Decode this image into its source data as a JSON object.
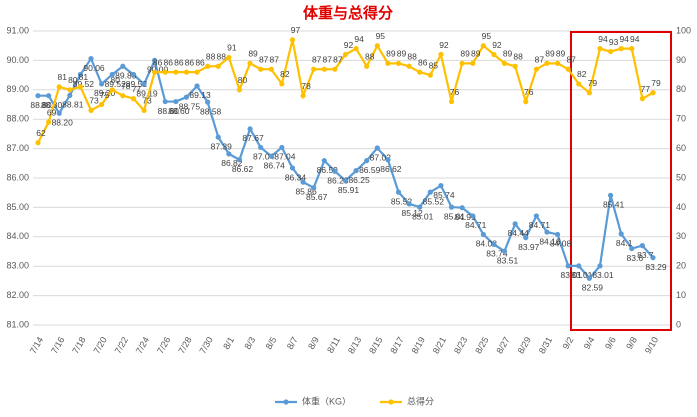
{
  "chart_data": {
    "type": "line",
    "title": "体重与总得分",
    "categories": [
      "7/14",
      null,
      "7/16",
      null,
      "7/18",
      null,
      "7/20",
      null,
      "7/22",
      null,
      "7/24",
      null,
      "7/26",
      null,
      "7/28",
      null,
      "7/30",
      null,
      "8/1",
      null,
      "8/3",
      null,
      "8/5",
      null,
      "8/7",
      null,
      "8/9",
      null,
      "8/11",
      null,
      "8/13",
      null,
      "8/15",
      null,
      "8/17",
      null,
      "8/19",
      null,
      "8/21",
      null,
      "8/23",
      null,
      "8/25",
      null,
      "8/27",
      null,
      "8/29",
      null,
      "8/31",
      null,
      "9/2",
      null,
      "9/4",
      null,
      "9/6",
      null,
      "9/8",
      null,
      "9/10"
    ],
    "series": [
      {
        "name": "体重（KG）",
        "color": "#5b9bd5",
        "axis": "y",
        "values": [
          88.8,
          88.8,
          88.2,
          88.81,
          89.52,
          90.06,
          89.2,
          89.52,
          89.8,
          89.52,
          89.19,
          90.0,
          88.6,
          88.6,
          88.75,
          89.13,
          88.58,
          87.39,
          86.82,
          86.62,
          87.67,
          87.04,
          86.74,
          87.04,
          86.34,
          85.86,
          85.67,
          86.59,
          86.23,
          85.91,
          86.25,
          86.59,
          87.02,
          86.62,
          85.52,
          85.12,
          85.01,
          85.52,
          85.74,
          85.01,
          84.99,
          84.71,
          84.08,
          83.74,
          83.51,
          84.44,
          83.97,
          84.71,
          84.16,
          84.08,
          83.01,
          83.01,
          82.59,
          83.01,
          85.41,
          84.1,
          83.6,
          83.7,
          83.29
        ],
        "value_labels": [
          "88.80",
          "88.80",
          "88.20",
          "88.81",
          "89.52",
          "90.06",
          "89.20",
          "89.52",
          "89.80",
          "89.52",
          "89.19",
          "90.00",
          "88.60",
          "88.60",
          "88.75",
          "89.13",
          "88.58",
          "87.39",
          "86.82",
          "86.62",
          "87.67",
          "87.04",
          "86.74",
          "87.04",
          "86.34",
          "85.86",
          "85.67",
          "86.59",
          "86.23",
          "85.91",
          "86.25",
          "86.59",
          "87.02",
          "86.62",
          "85.52",
          "85.12",
          "85.01",
          "85.52",
          "85.74",
          "85.01",
          "84.99",
          "84.71",
          "84.08",
          "83.74",
          "83.51",
          "84.44",
          "83.97",
          "84.71",
          "84.16",
          "84.08",
          "83.01",
          "83.01",
          "82.59",
          "83.01",
          "85.41",
          "84.1",
          "83.6",
          "83.7",
          "83.29"
        ]
      },
      {
        "name": "总得分",
        "color": "#ffc000",
        "axis": "y2",
        "values": [
          62,
          69,
          81,
          80,
          81,
          73,
          75,
          80,
          78,
          77,
          73,
          86,
          86,
          86,
          86,
          86,
          88,
          88,
          91,
          80,
          89,
          87,
          87,
          82,
          97,
          78,
          87,
          87,
          87,
          92,
          94,
          88,
          95,
          89,
          89,
          88,
          86,
          85,
          92,
          76,
          89,
          89,
          95,
          92,
          89,
          88,
          76,
          87,
          89,
          89,
          87,
          82,
          79,
          94,
          93,
          94,
          94,
          77,
          79
        ]
      }
    ],
    "ylim": [
      81,
      91
    ],
    "yticks": [
      {
        "value": 81,
        "label": "81.00"
      },
      {
        "value": 82,
        "label": "82.00"
      },
      {
        "value": 83,
        "label": "83.00"
      },
      {
        "value": 84,
        "label": "84.00"
      },
      {
        "value": 85,
        "label": "85.00"
      },
      {
        "value": 86,
        "label": "86.00"
      },
      {
        "value": 87,
        "label": "87.00"
      },
      {
        "value": 88,
        "label": "88.00"
      },
      {
        "value": 89,
        "label": "89.00"
      },
      {
        "value": 90,
        "label": "90.00"
      },
      {
        "value": 91,
        "label": "91.00"
      }
    ],
    "y2lim": [
      0,
      100
    ],
    "y2ticks": [
      0,
      10,
      20,
      30,
      40,
      50,
      60,
      70,
      80,
      90,
      100
    ],
    "grid": true,
    "legend": "bottom"
  }
}
